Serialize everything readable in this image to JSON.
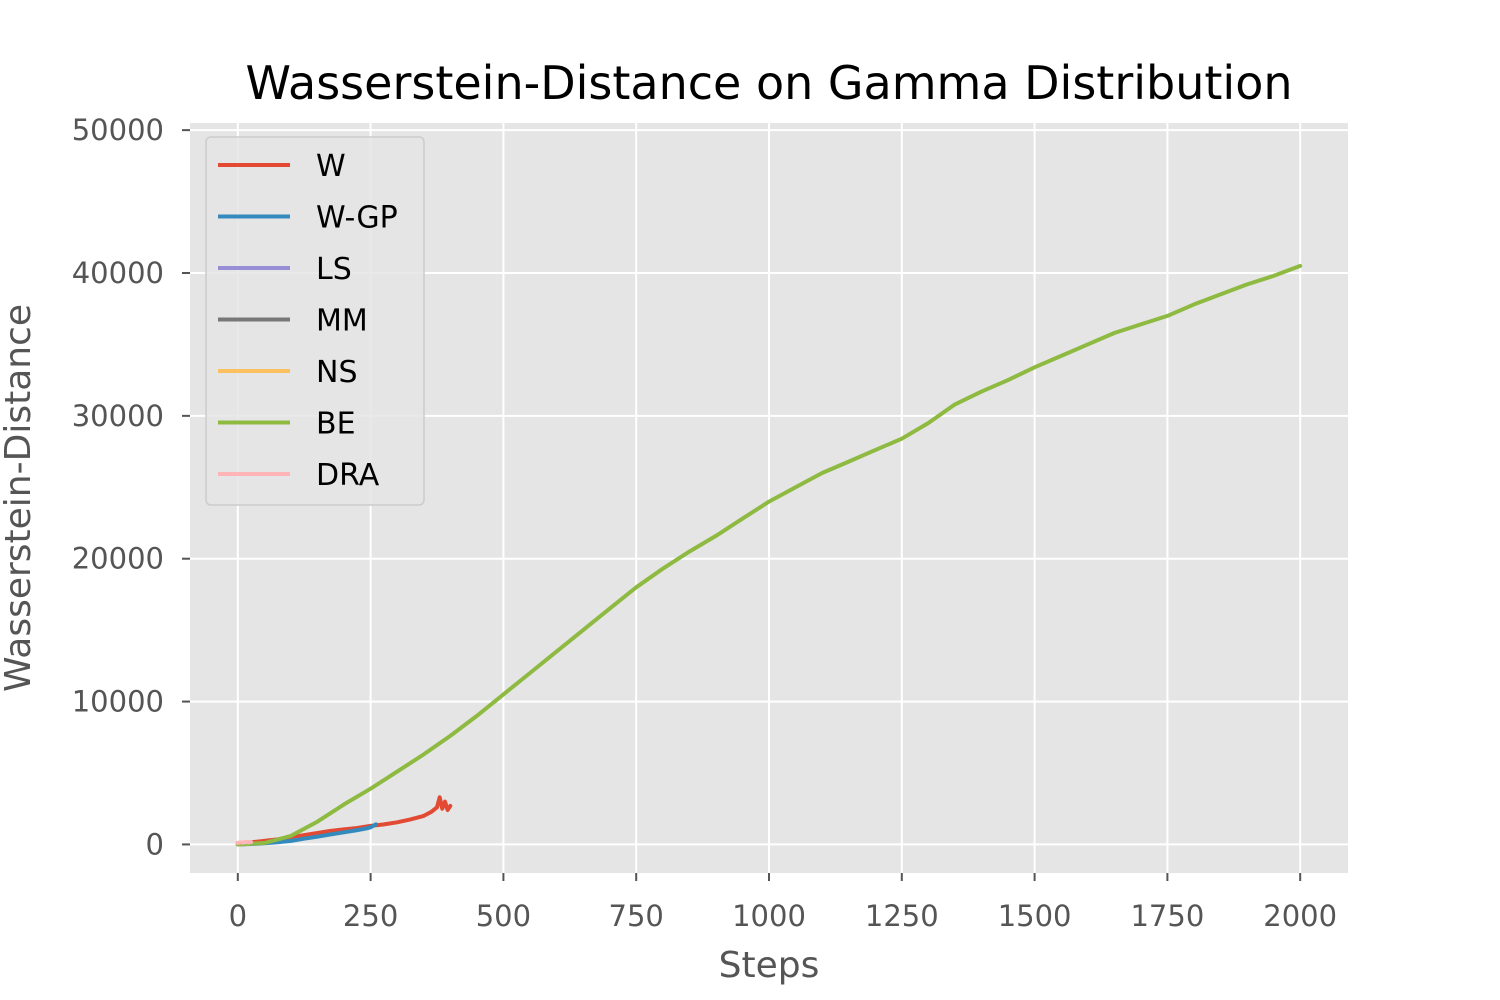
{
  "chart_data": {
    "type": "line",
    "title": "Wasserstein-Distance on Gamma Distribution",
    "xlabel": "Steps",
    "ylabel": "Wasserstein-Distance",
    "xlim": [
      -90,
      2090
    ],
    "ylim": [
      -2000,
      50500
    ],
    "xticks": [
      0,
      250,
      500,
      750,
      1000,
      1250,
      1500,
      1750,
      2000
    ],
    "xtick_labels": [
      "0",
      "250",
      "500",
      "750",
      "1000",
      "1250",
      "1500",
      "1750",
      "2000"
    ],
    "yticks": [
      0,
      10000,
      20000,
      30000,
      40000,
      50000
    ],
    "ytick_labels": [
      "0",
      "10000",
      "20000",
      "30000",
      "40000",
      "50000"
    ],
    "grid": true,
    "legend_position": "upper-left",
    "series": [
      {
        "name": "W",
        "color": "#E24A33",
        "x": [
          0,
          25,
          50,
          75,
          100,
          125,
          150,
          175,
          200,
          225,
          250,
          275,
          300,
          325,
          350,
          365,
          375,
          380,
          385,
          390,
          395,
          400
        ],
        "y": [
          100,
          150,
          250,
          350,
          500,
          650,
          800,
          950,
          1050,
          1150,
          1300,
          1400,
          1550,
          1750,
          2000,
          2300,
          2600,
          3300,
          2500,
          3000,
          2400,
          2700
        ]
      },
      {
        "name": "W-GP",
        "color": "#348ABD",
        "x": [
          0,
          25,
          50,
          75,
          100,
          125,
          150,
          175,
          200,
          225,
          240,
          250,
          260
        ],
        "y": [
          0,
          30,
          80,
          150,
          250,
          400,
          550,
          700,
          850,
          1000,
          1100,
          1200,
          1400
        ]
      },
      {
        "name": "LS",
        "color": "#988ED5",
        "x": [
          0,
          5,
          10,
          15,
          20
        ],
        "y": [
          0,
          20,
          40,
          50,
          60
        ]
      },
      {
        "name": "MM",
        "color": "#777777",
        "x": [
          0,
          5,
          10,
          15,
          20
        ],
        "y": [
          0,
          10,
          20,
          30,
          40
        ]
      },
      {
        "name": "NS",
        "color": "#FBC15E",
        "x": [
          0,
          5,
          10,
          15,
          20
        ],
        "y": [
          0,
          15,
          30,
          40,
          50
        ]
      },
      {
        "name": "BE",
        "color": "#8EBA42",
        "x": [
          0,
          50,
          100,
          150,
          200,
          250,
          300,
          350,
          400,
          450,
          500,
          550,
          600,
          650,
          700,
          750,
          800,
          850,
          900,
          950,
          1000,
          1050,
          1100,
          1150,
          1200,
          1250,
          1300,
          1350,
          1400,
          1450,
          1500,
          1550,
          1600,
          1650,
          1700,
          1750,
          1800,
          1850,
          1900,
          1950,
          2000
        ],
        "y": [
          0,
          100,
          600,
          1600,
          2800,
          3900,
          5100,
          6300,
          7600,
          9000,
          10500,
          12000,
          13500,
          15000,
          16500,
          18000,
          19300,
          20500,
          21600,
          22800,
          24000,
          25000,
          26000,
          26800,
          27600,
          28400,
          29500,
          30800,
          31700,
          32500,
          33400,
          34200,
          35000,
          35800,
          36400,
          37000,
          37800,
          38500,
          39200,
          39800,
          40500
        ]
      },
      {
        "name": "DRA",
        "color": "#FFB5B8",
        "x": [
          0,
          5,
          10,
          15,
          20,
          25
        ],
        "y": [
          100,
          150,
          120,
          180,
          140,
          160
        ]
      }
    ]
  }
}
